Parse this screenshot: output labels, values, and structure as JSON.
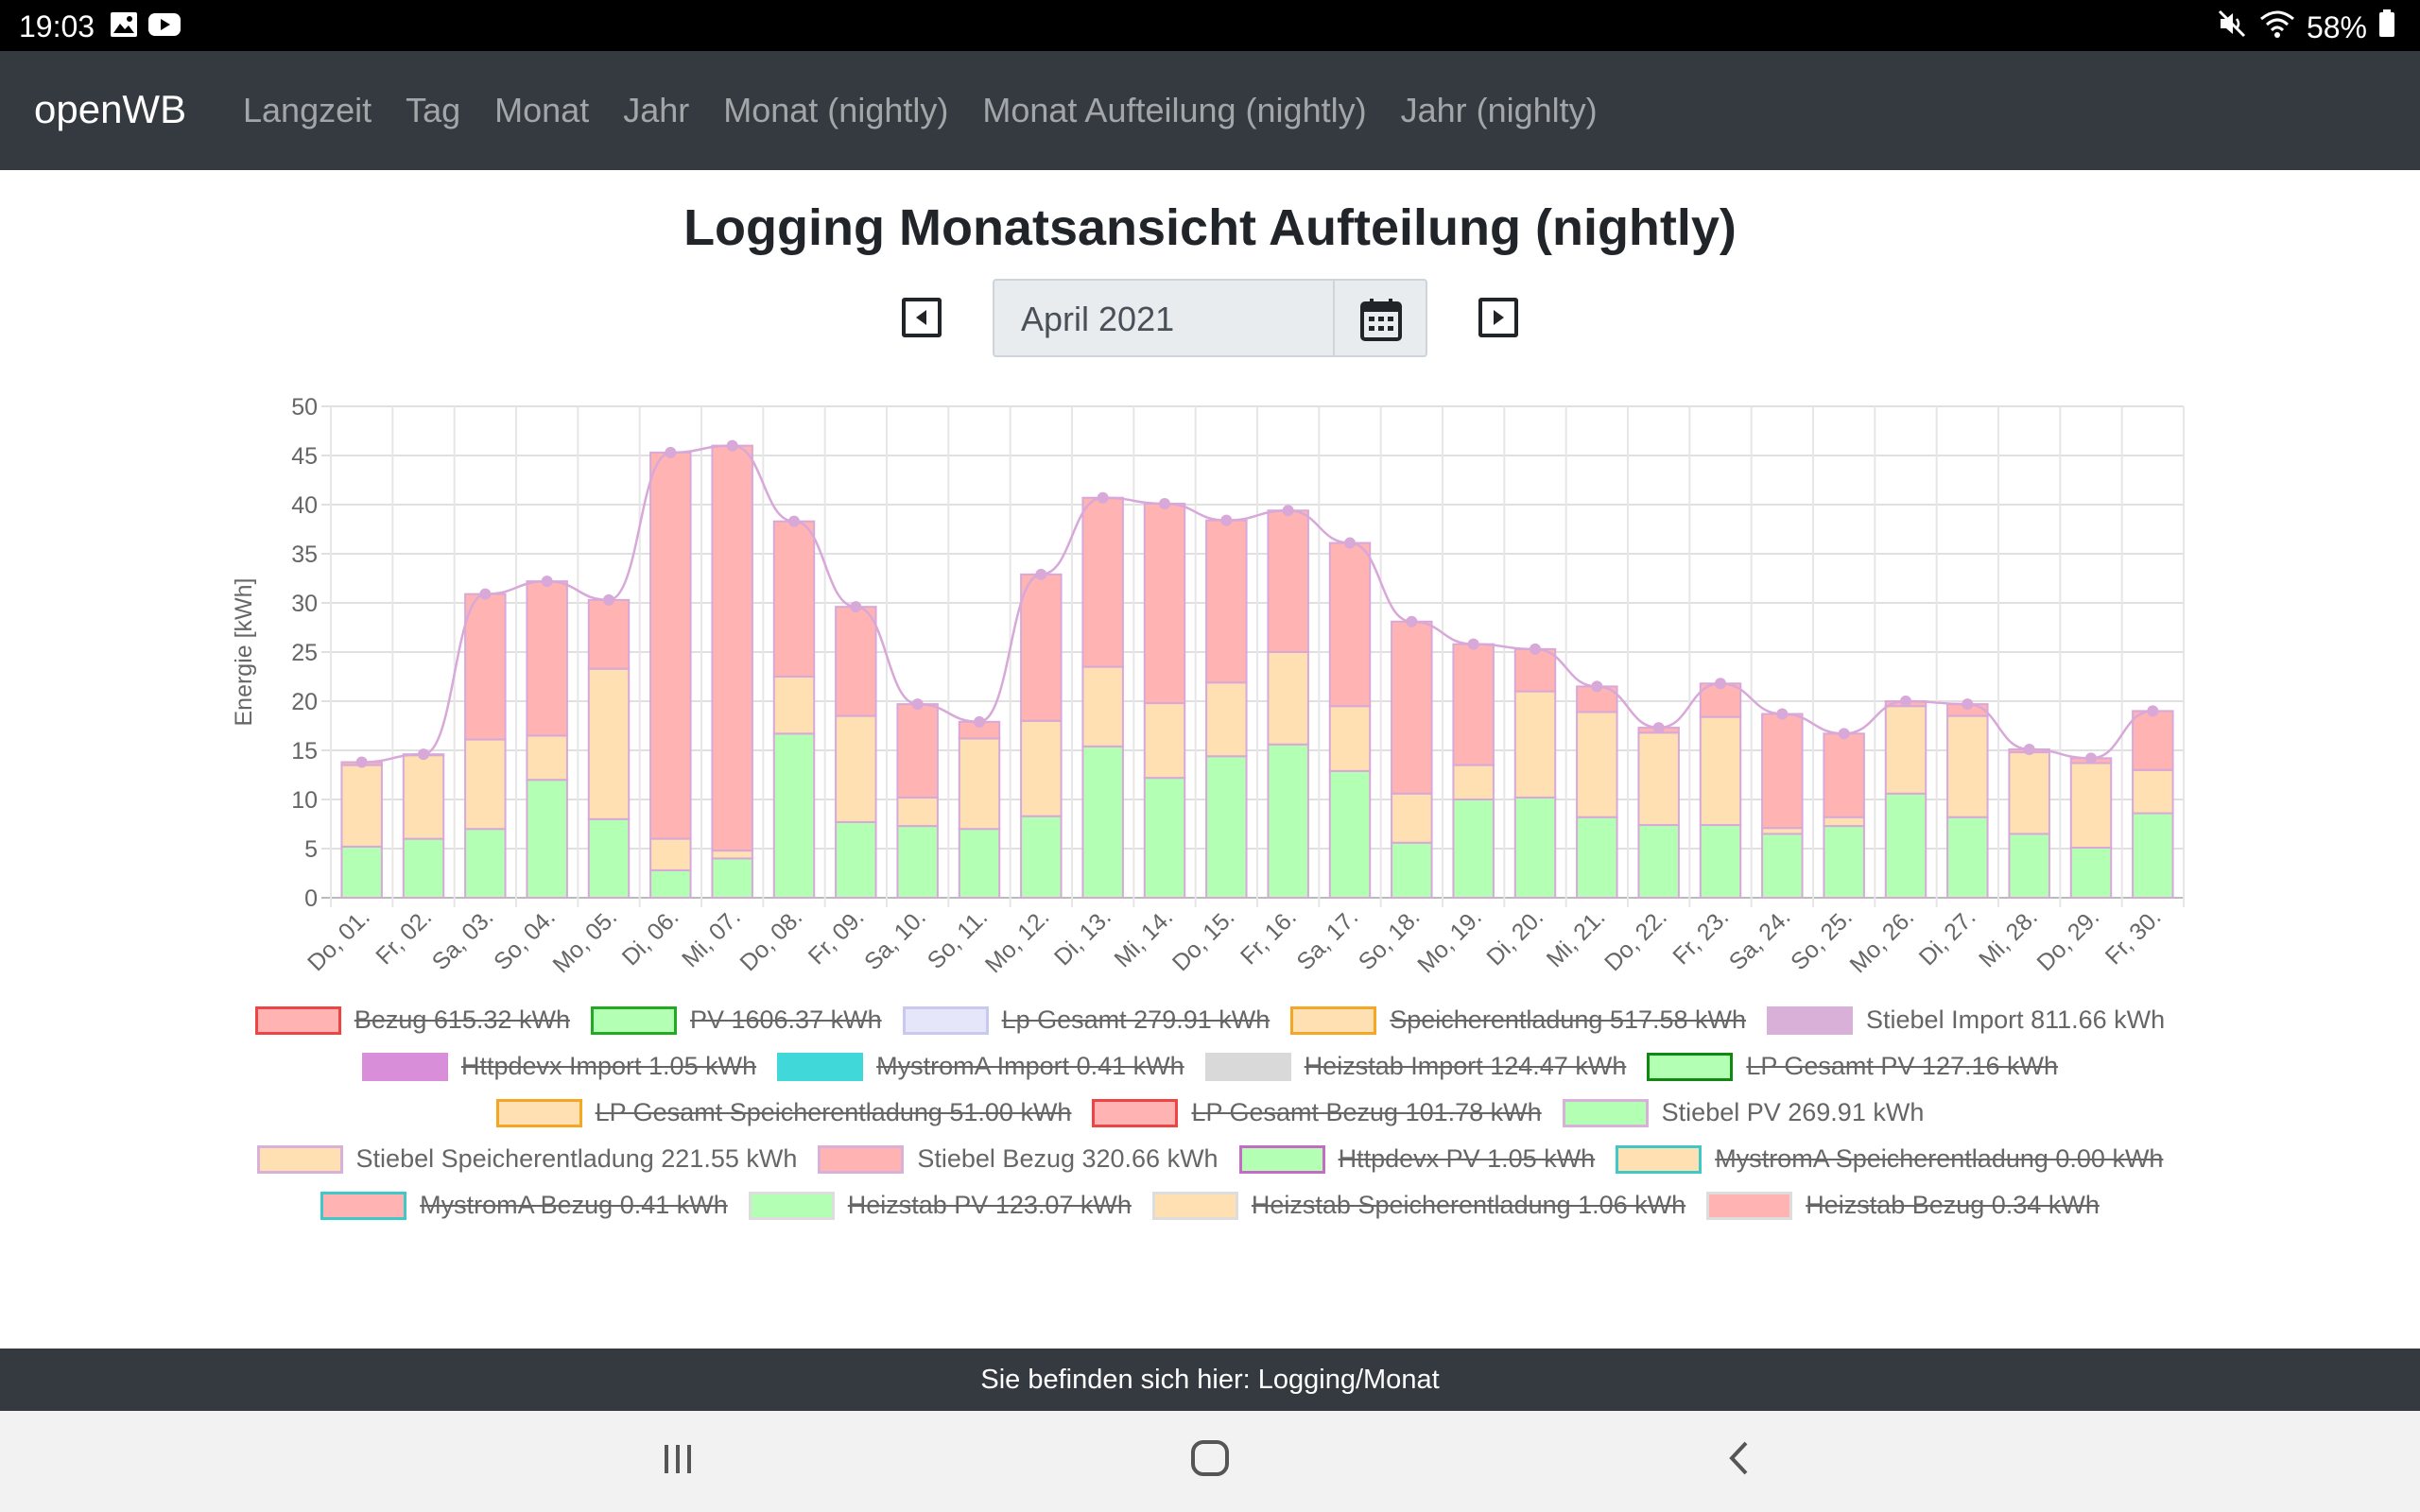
{
  "status_bar": {
    "time": "19:03",
    "battery": "58%"
  },
  "navbar": {
    "brand": "openWB",
    "links": [
      "Langzeit",
      "Tag",
      "Monat",
      "Jahr",
      "Monat (nightly)",
      "Monat Aufteilung (nightly)",
      "Jahr (nighlty)"
    ]
  },
  "page_title": "Logging Monatsansicht Aufteilung (nightly)",
  "month_picker": {
    "value": "April 2021"
  },
  "footer": {
    "text": "Sie befinden sich hier: Logging/Monat"
  },
  "colors": {
    "pv": "#b3ffb3",
    "speicher": "#ffe0b2",
    "bezug": "#ffb3b3",
    "stiebel_import": "#d8a8d8",
    "navbar": "#343a40"
  },
  "legend": [
    [
      {
        "label": "Bezug 615.32 kWh",
        "fill": "#ffb3b3",
        "border": "#ee4444",
        "hidden": true
      },
      {
        "label": "PV 1606.37 kWh",
        "fill": "#b3ffb3",
        "border": "#22aa22",
        "hidden": true
      },
      {
        "label": "Lp Gesamt 279.91 kWh",
        "fill": "#e6e6fa",
        "border": "#c9c9f0",
        "hidden": true
      },
      {
        "label": "Speicherentladung 517.58 kWh",
        "fill": "#ffe0b2",
        "border": "#f5a623",
        "hidden": true
      },
      {
        "label": "Stiebel Import 811.66 kWh",
        "fill": "#d8b0d8",
        "border": "#d8b0d8",
        "hidden": false
      }
    ],
    [
      {
        "label": "Httpdevx Import 1.05 kWh",
        "fill": "#d98ed9",
        "border": "#d98ed9",
        "hidden": true
      },
      {
        "label": "MystromA Import 0.41 kWh",
        "fill": "#40d8d8",
        "border": "#40d8d8",
        "hidden": true
      },
      {
        "label": "Heizstab Import 124.47 kWh",
        "fill": "#d9d9d9",
        "border": "#d9d9d9",
        "hidden": true
      },
      {
        "label": "LP Gesamt PV 127.16 kWh",
        "fill": "#b3ffb3",
        "border": "#118811",
        "hidden": true
      }
    ],
    [
      {
        "label": "LP Gesamt Speicherentladung 51.00 kWh",
        "fill": "#ffe0b2",
        "border": "#f5a623",
        "hidden": true
      },
      {
        "label": "LP Gesamt Bezug 101.78 kWh",
        "fill": "#ffb3b3",
        "border": "#ee4444",
        "hidden": true
      },
      {
        "label": "Stiebel PV 269.91 kWh",
        "fill": "#b3ffb3",
        "border": "#d8b0d8",
        "hidden": false
      }
    ],
    [
      {
        "label": "Stiebel Speicherentladung 221.55 kWh",
        "fill": "#ffe0b2",
        "border": "#d8b0d8",
        "hidden": false
      },
      {
        "label": "Stiebel Bezug 320.66 kWh",
        "fill": "#ffb3b3",
        "border": "#d8b0d8",
        "hidden": false
      },
      {
        "label": "Httpdevx PV 1.05 kWh",
        "fill": "#b3ffb3",
        "border": "#c46bc4",
        "hidden": true
      },
      {
        "label": "MystromA Speicherentladung 0.00 kWh",
        "fill": "#ffe0b2",
        "border": "#40c8c8",
        "hidden": true
      }
    ],
    [
      {
        "label": "MystromA Bezug 0.41 kWh",
        "fill": "#ffb3b3",
        "border": "#40c8c8",
        "hidden": true
      },
      {
        "label": "Heizstab PV 123.07 kWh",
        "fill": "#b3ffb3",
        "border": "#dddddd",
        "hidden": true
      },
      {
        "label": "Heizstab Speicherentladung 1.06 kWh",
        "fill": "#ffe0b2",
        "border": "#dddddd",
        "hidden": true
      },
      {
        "label": "Heizstab Bezug 0.34 kWh",
        "fill": "#ffb3b3",
        "border": "#dddddd",
        "hidden": true
      }
    ]
  ],
  "chart_data": {
    "type": "bar",
    "stacked": true,
    "ylabel": "Energie [kWh]",
    "ylim": [
      0,
      50
    ],
    "yticks": [
      0,
      5,
      10,
      15,
      20,
      25,
      30,
      35,
      40,
      45,
      50
    ],
    "grid": true,
    "categories": [
      "Do, 01.",
      "Fr, 02.",
      "Sa, 03.",
      "So, 04.",
      "Mo, 05.",
      "Di, 06.",
      "Mi, 07.",
      "Do, 08.",
      "Fr, 09.",
      "Sa, 10.",
      "So, 11.",
      "Mo, 12.",
      "Di, 13.",
      "Mi, 14.",
      "Do, 15.",
      "Fr, 16.",
      "Sa, 17.",
      "So, 18.",
      "Mo, 19.",
      "Di, 20.",
      "Mi, 21.",
      "Do, 22.",
      "Fr, 23.",
      "Sa, 24.",
      "So, 25.",
      "Mo, 26.",
      "Di, 27.",
      "Mi, 28.",
      "Do, 29.",
      "Fr, 30."
    ],
    "series": [
      {
        "name": "Stiebel PV",
        "values": [
          5.2,
          6.0,
          7.0,
          12.0,
          8.0,
          2.8,
          4.0,
          16.7,
          7.7,
          7.3,
          7.0,
          8.3,
          15.4,
          12.2,
          14.4,
          15.6,
          12.9,
          5.6,
          10.0,
          10.2,
          8.2,
          7.4,
          7.4,
          6.5,
          7.3,
          10.6,
          8.2,
          6.5,
          5.1,
          8.6
        ]
      },
      {
        "name": "Stiebel Speicherentladung",
        "values": [
          8.3,
          8.5,
          9.1,
          4.5,
          15.3,
          3.2,
          0.8,
          5.8,
          10.8,
          2.9,
          9.2,
          9.7,
          8.1,
          7.6,
          7.5,
          9.4,
          6.6,
          5.0,
          3.5,
          10.8,
          10.7,
          9.4,
          11.0,
          0.6,
          0.9,
          8.9,
          10.3,
          8.3,
          8.6,
          4.4
        ]
      },
      {
        "name": "Stiebel Bezug",
        "values": [
          0.3,
          0.1,
          14.8,
          15.7,
          7.0,
          39.3,
          41.2,
          15.8,
          11.1,
          9.5,
          1.7,
          14.9,
          17.2,
          20.3,
          16.5,
          14.4,
          16.6,
          17.5,
          12.3,
          4.3,
          2.6,
          0.5,
          3.4,
          11.6,
          8.5,
          0.5,
          1.2,
          0.3,
          0.5,
          6.0
        ]
      }
    ],
    "line": {
      "name": "Stiebel Import",
      "values": [
        13.8,
        14.6,
        30.9,
        32.2,
        30.3,
        45.3,
        46.0,
        38.3,
        29.6,
        19.7,
        17.9,
        32.9,
        40.7,
        40.1,
        38.4,
        39.4,
        36.1,
        28.1,
        25.8,
        25.3,
        21.5,
        17.3,
        21.8,
        18.7,
        16.7,
        20.0,
        19.7,
        15.1,
        14.2,
        19.0
      ]
    }
  }
}
